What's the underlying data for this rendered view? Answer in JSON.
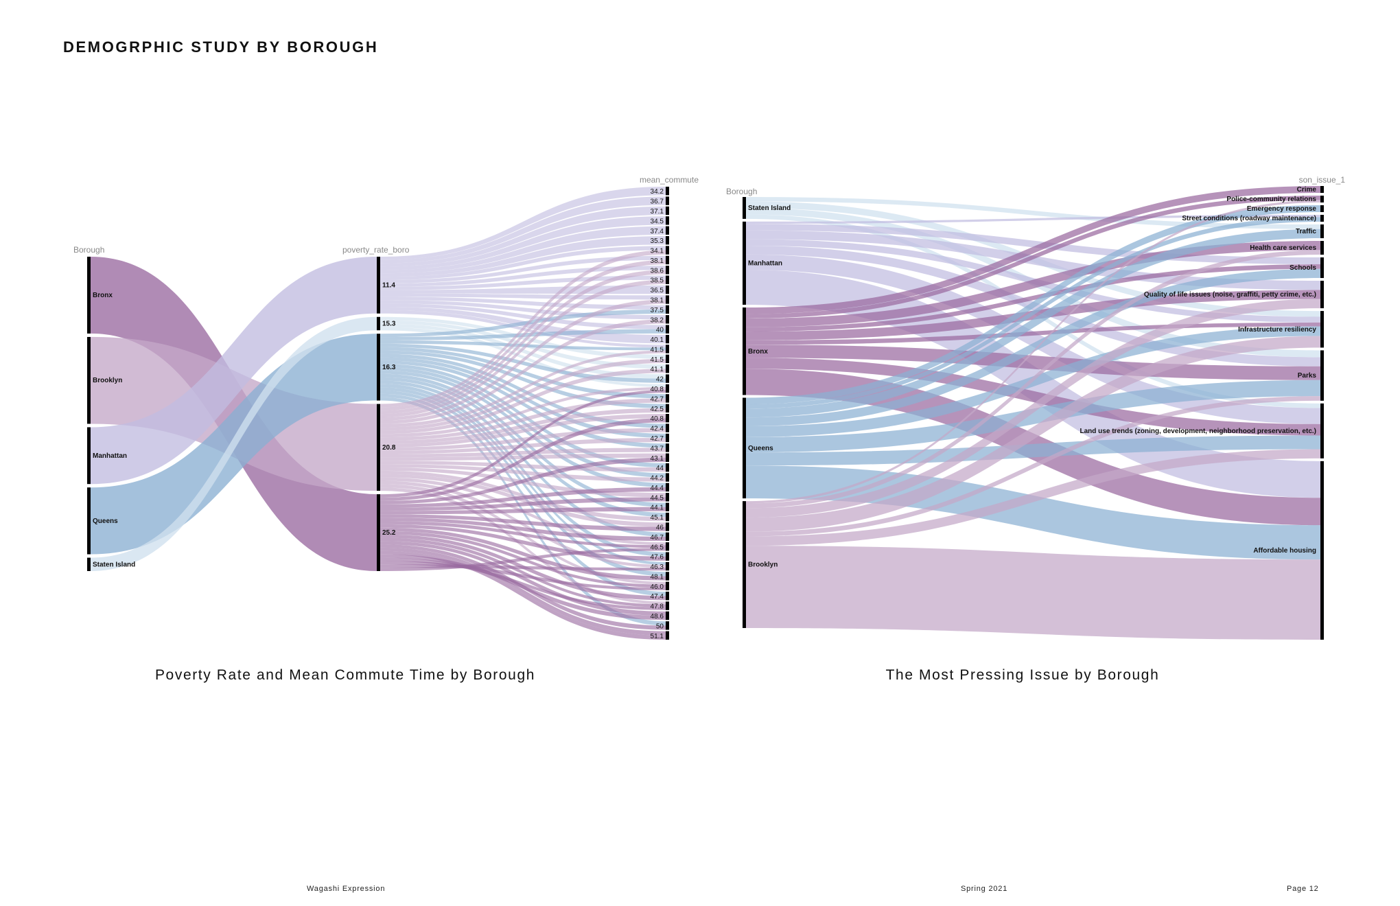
{
  "page": {
    "title": "DEMOGRPHIC STUDY BY BOROUGH",
    "footer_left": "Wagashi Expression",
    "footer_mid": "Spring 2021",
    "footer_right": "Page 12"
  },
  "colors": {
    "Bronx": "#9a6aa0",
    "Brooklyn": "#c4a8c8",
    "Manhattan": "#c1bde0",
    "Queens": "#8ab0d2",
    "Staten Island": "#cfe0ee",
    "node": "#000000"
  },
  "chart_data": [
    {
      "type": "sankey",
      "title": "Poverty Rate and Mean Commute Time by Borough",
      "axis_labels": [
        "Borough",
        "poverty_rate_boro",
        "mean_commute"
      ],
      "boroughs": [
        {
          "name": "Bronx",
          "value": 23
        },
        {
          "name": "Brooklyn",
          "value": 26
        },
        {
          "name": "Manhattan",
          "value": 17
        },
        {
          "name": "Queens",
          "value": 20
        },
        {
          "name": "Staten Island",
          "value": 4
        }
      ],
      "poverty_rates": [
        {
          "label": "11.4",
          "borough": "Manhattan",
          "value": 17
        },
        {
          "label": "15.3",
          "borough": "Staten Island",
          "value": 4
        },
        {
          "label": "16.3",
          "borough": "Queens",
          "value": 20
        },
        {
          "label": "20.8",
          "borough": "Brooklyn",
          "value": 26
        },
        {
          "label": "25.2",
          "borough": "Bronx",
          "value": 23
        }
      ],
      "commute_times": [
        "34.2",
        "36.7",
        "37.1",
        "34.5",
        "37.4",
        "35.3",
        "34.1",
        "38.1",
        "38.6",
        "38.5",
        "36.5",
        "38.1",
        "37.5",
        "38.2",
        "40",
        "40.1",
        "41.5",
        "41.5",
        "41.1",
        "42",
        "40.8",
        "42.7",
        "42.5",
        "40.8",
        "42.4",
        "42.7",
        "43.7",
        "43.1",
        "44",
        "44.2",
        "44.4",
        "44.5",
        "44.1",
        "45.1",
        "46",
        "46.7",
        "46.5",
        "47.6",
        "46.3",
        "48.1",
        "46.0",
        "47.4",
        "47.8",
        "48.6",
        "50",
        "51.1"
      ],
      "commute_groups": [
        {
          "borough": "Manhattan",
          "targets": [
            0,
            1,
            2,
            3,
            4,
            5,
            6,
            7,
            8,
            9,
            10,
            11,
            12,
            13,
            14,
            15,
            16
          ]
        },
        {
          "borough": "Staten Island",
          "targets": [
            17,
            18,
            19,
            20
          ]
        },
        {
          "borough": "Queens",
          "targets": [
            12,
            14,
            16,
            19,
            21,
            22,
            24,
            25,
            26,
            28,
            29,
            30,
            32,
            33,
            35,
            37,
            38,
            39,
            41,
            44
          ]
        },
        {
          "borough": "Brooklyn",
          "targets": [
            6,
            7,
            8,
            9,
            11,
            13,
            16,
            17,
            18,
            20,
            21,
            22,
            23,
            24,
            25,
            26,
            27,
            28,
            29,
            31,
            33,
            34,
            36,
            38,
            40,
            42
          ]
        },
        {
          "borough": "Bronx",
          "targets": [
            20,
            23,
            27,
            30,
            31,
            32,
            34,
            35,
            36,
            37,
            39,
            40,
            41,
            42,
            43,
            44,
            45,
            45,
            43,
            42,
            40,
            38,
            36
          ]
        }
      ]
    },
    {
      "type": "sankey",
      "title": "The Most Pressing Issue by Borough",
      "axis_labels": [
        "Borough",
        "son_issue_1"
      ],
      "boroughs": [
        {
          "name": "Staten Island",
          "value": 5
        },
        {
          "name": "Manhattan",
          "value": 19
        },
        {
          "name": "Bronx",
          "value": 20
        },
        {
          "name": "Queens",
          "value": 23
        },
        {
          "name": "Brooklyn",
          "value": 29
        }
      ],
      "issues": [
        {
          "name": "Crime",
          "value": 1.5
        },
        {
          "name": "Police-community relations",
          "value": 1.5
        },
        {
          "name": "Emergency response",
          "value": 1.5
        },
        {
          "name": "Street conditions (roadway maintenance)",
          "value": 1.5
        },
        {
          "name": "Traffic",
          "value": 3
        },
        {
          "name": "Health care services",
          "value": 3
        },
        {
          "name": "Schools",
          "value": 4.5
        },
        {
          "name": "Quality of life issues (noise, graffiti, petty crime, etc.)",
          "value": 6
        },
        {
          "name": "Infrastructure resiliency",
          "value": 8
        },
        {
          "name": "Parks",
          "value": 11
        },
        {
          "name": "Land use trends (zoning, development, neighborhood preservation, etc.)",
          "value": 12
        },
        {
          "name": "Affordable housing",
          "value": 39
        }
      ],
      "flows": [
        {
          "source": "Staten Island",
          "target": "Traffic",
          "value": 1
        },
        {
          "source": "Staten Island",
          "target": "Infrastructure resiliency",
          "value": 1.5
        },
        {
          "source": "Staten Island",
          "target": "Parks",
          "value": 1.5
        },
        {
          "source": "Staten Island",
          "target": "Land use trends (zoning, development, neighborhood preservation, etc.)",
          "value": 1
        },
        {
          "source": "Manhattan",
          "target": "Street conditions (roadway maintenance)",
          "value": 0.5
        },
        {
          "source": "Manhattan",
          "target": "Schools",
          "value": 1.5
        },
        {
          "source": "Manhattan",
          "target": "Quality of life issues (noise, graffiti, petty crime, etc.)",
          "value": 2
        },
        {
          "source": "Manhattan",
          "target": "Infrastructure resiliency",
          "value": 1.5
        },
        {
          "source": "Manhattan",
          "target": "Parks",
          "value": 2
        },
        {
          "source": "Manhattan",
          "target": "Land use trends (zoning, development, neighborhood preservation, etc.)",
          "value": 3.5
        },
        {
          "source": "Manhattan",
          "target": "Affordable housing",
          "value": 8
        },
        {
          "source": "Bronx",
          "target": "Crime",
          "value": 1.5
        },
        {
          "source": "Bronx",
          "target": "Police-community relations",
          "value": 1
        },
        {
          "source": "Bronx",
          "target": "Health care services",
          "value": 2
        },
        {
          "source": "Bronx",
          "target": "Schools",
          "value": 1
        },
        {
          "source": "Bronx",
          "target": "Quality of life issues (noise, graffiti, petty crime, etc.)",
          "value": 2
        },
        {
          "source": "Bronx",
          "target": "Infrastructure resiliency",
          "value": 1
        },
        {
          "source": "Bronx",
          "target": "Parks",
          "value": 3
        },
        {
          "source": "Bronx",
          "target": "Land use trends (zoning, development, neighborhood preservation, etc.)",
          "value": 2.5
        },
        {
          "source": "Bronx",
          "target": "Affordable housing",
          "value": 6
        },
        {
          "source": "Queens",
          "target": "Emergency response",
          "value": 1.5
        },
        {
          "source": "Queens",
          "target": "Street conditions (roadway maintenance)",
          "value": 1
        },
        {
          "source": "Queens",
          "target": "Traffic",
          "value": 2
        },
        {
          "source": "Queens",
          "target": "Schools",
          "value": 2
        },
        {
          "source": "Queens",
          "target": "Infrastructure resiliency",
          "value": 2.5
        },
        {
          "source": "Queens",
          "target": "Parks",
          "value": 3.5
        },
        {
          "source": "Queens",
          "target": "Land use trends (zoning, development, neighborhood preservation, etc.)",
          "value": 3
        },
        {
          "source": "Queens",
          "target": "Affordable housing",
          "value": 7.5
        },
        {
          "source": "Brooklyn",
          "target": "Police-community relations",
          "value": 0.5
        },
        {
          "source": "Brooklyn",
          "target": "Health care services",
          "value": 1
        },
        {
          "source": "Brooklyn",
          "target": "Quality of life issues (noise, graffiti, petty crime, etc.)",
          "value": 2
        },
        {
          "source": "Brooklyn",
          "target": "Infrastructure resiliency",
          "value": 3
        },
        {
          "source": "Brooklyn",
          "target": "Parks",
          "value": 1
        },
        {
          "source": "Brooklyn",
          "target": "Land use trends (zoning, development, neighborhood preservation, etc.)",
          "value": 2
        },
        {
          "source": "Brooklyn",
          "target": "Affordable housing",
          "value": 17.5
        }
      ]
    }
  ]
}
